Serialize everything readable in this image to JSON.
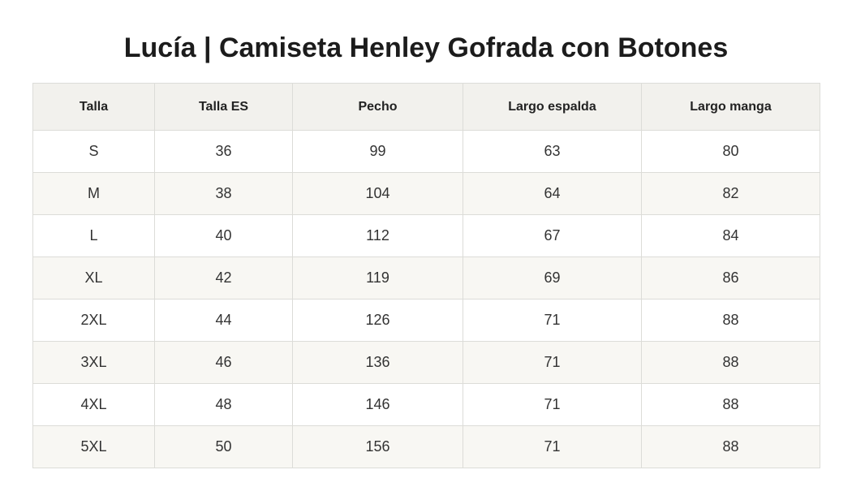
{
  "title": "Lucía | Camiseta Henley Gofrada con Botones",
  "table": {
    "headers": [
      "Talla",
      "Talla ES",
      "Pecho",
      "Largo espalda",
      "Largo manga"
    ],
    "rows": [
      [
        "S",
        "36",
        "99",
        "63",
        "80"
      ],
      [
        "M",
        "38",
        "104",
        "64",
        "82"
      ],
      [
        "L",
        "40",
        "112",
        "67",
        "84"
      ],
      [
        "XL",
        "42",
        "119",
        "69",
        "86"
      ],
      [
        "2XL",
        "44",
        "126",
        "71",
        "88"
      ],
      [
        "3XL",
        "46",
        "136",
        "71",
        "88"
      ],
      [
        "4XL",
        "48",
        "146",
        "71",
        "88"
      ],
      [
        "5XL",
        "50",
        "156",
        "71",
        "88"
      ]
    ]
  },
  "colors": {
    "header_bg": "#f2f1ed",
    "alt_row_bg": "#f8f7f3",
    "border": "#dcdcd8"
  }
}
